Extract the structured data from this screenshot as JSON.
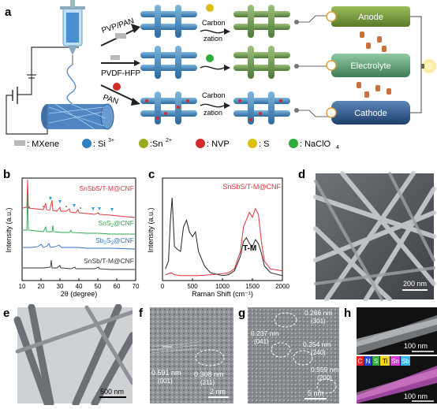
{
  "panels": {
    "a": "a",
    "b": "b",
    "c": "c",
    "d": "d",
    "e": "e",
    "f": "f",
    "g": "g",
    "h": "h"
  },
  "schematic": {
    "routes": [
      "PVP/PAN",
      "PVDF-HFP",
      "PAN"
    ],
    "process_top": [
      "Carbon",
      "zation"
    ],
    "process_bottom": [
      "Carbon",
      "zation"
    ],
    "targets": [
      "Anode",
      "Electrolyte",
      "Cathode"
    ],
    "legend": [
      {
        "text": ": MXene",
        "color": "#b8b8b8"
      },
      {
        "text": ": Si",
        "sup": "3+",
        "color": "#2f7fc1"
      },
      {
        "text": ":Sn",
        "sup": "2+",
        "color": "#9aa820"
      },
      {
        "text": ": NVP",
        "color": "#d42a2a"
      },
      {
        "text": ": S",
        "color": "#d9c012"
      },
      {
        "text": ": NaClO",
        "sub": "4",
        "color": "#2fae3a"
      }
    ]
  },
  "chart_data": [
    {
      "type": "line",
      "panel": "b",
      "xlabel": "2θ (degree)",
      "ylabel": "Intensity (a.u.)",
      "xlim": [
        10,
        70
      ],
      "xticks": [
        10,
        20,
        30,
        40,
        50,
        60,
        70
      ],
      "series": [
        {
          "name": "SnSbS/T-M@CNF",
          "color": "#e0303a"
        },
        {
          "name": "SnS2@CNF",
          "color": "#2ea84a"
        },
        {
          "name": "Sb2S3@CNF",
          "color": "#2f6fc9"
        },
        {
          "name": "SnSb/T-M@CNF",
          "color": "#333333"
        }
      ]
    },
    {
      "type": "line",
      "panel": "c",
      "xlabel": "Raman Shift (cm⁻¹)",
      "ylabel": "Intensity (a.u.)",
      "xlim": [
        0,
        2000
      ],
      "xticks": [
        0,
        500,
        1000,
        1500,
        2000
      ],
      "annotations": [
        "T-M"
      ],
      "series": [
        {
          "name": "SnSbS/T-M@CNF",
          "color": "#e0303a",
          "x": [
            50,
            100,
            150,
            200,
            300,
            400,
            500,
            600,
            800,
            1000,
            1100,
            1200,
            1300,
            1350,
            1450,
            1500,
            1550,
            1600,
            1650,
            1700,
            1800,
            2000
          ],
          "y": [
            0.06,
            0.07,
            0.08,
            0.06,
            0.05,
            0.05,
            0.05,
            0.05,
            0.06,
            0.07,
            0.08,
            0.12,
            0.3,
            0.55,
            0.7,
            0.65,
            0.74,
            0.68,
            0.4,
            0.2,
            0.12,
            0.1
          ]
        },
        {
          "name": "T-M",
          "color": "#222222",
          "x": [
            50,
            100,
            130,
            160,
            200,
            250,
            300,
            350,
            400,
            450,
            500,
            550,
            600,
            700,
            800,
            1000,
            1100,
            1200,
            1300,
            1350,
            1400,
            1450,
            1500,
            1550,
            1600,
            1650,
            1700,
            1800,
            2000
          ],
          "y": [
            0.12,
            0.2,
            0.6,
            0.85,
            0.35,
            0.32,
            0.3,
            0.55,
            0.62,
            0.5,
            0.45,
            0.5,
            0.3,
            0.15,
            0.08,
            0.05,
            0.06,
            0.1,
            0.25,
            0.4,
            0.44,
            0.38,
            0.35,
            0.42,
            0.38,
            0.28,
            0.15,
            0.08,
            0.05
          ]
        }
      ]
    }
  ],
  "b_labels": {
    "s1": "SnSbS/T-M@CNF",
    "s2_main": "SnS",
    "s2_sub": "2",
    "s2_tail": "@CNF",
    "s3_a": "Sb",
    "s3_sub1": "2",
    "s3_b": "S",
    "s3_sub2": "3",
    "s3_tail": "@CNF",
    "s4": "SnSb/T-M@CNF"
  },
  "sem_d": {
    "scale": "200 nm"
  },
  "tem_e": {
    "scale": "500 nm"
  },
  "hrtem_f": {
    "d1": "0.591 nm",
    "h1": "(001)",
    "d2": "0.308 nm",
    "h2": "(211)",
    "scale": "2 nm"
  },
  "hrtem_g": {
    "d1": "0.266 nm",
    "h1": "(301)",
    "d2": "0.237 nm",
    "h2": "(041)",
    "d3": "0.254 nm",
    "h3": "(240)",
    "d4": "0.559 nm",
    "h4": "(200)",
    "scale": "5 nm"
  },
  "map_h": {
    "scale_top": "100 nm",
    "scale_bottom": "100 nm",
    "elements": [
      {
        "sym": "C",
        "color": "#e8232a"
      },
      {
        "sym": "N",
        "color": "#2b49e0"
      },
      {
        "sym": "S",
        "color": "#2fae3a"
      },
      {
        "sym": "Ti",
        "color": "#f2d21a"
      },
      {
        "sym": "Sn",
        "color": "#d83ad8"
      },
      {
        "sym": "Sb",
        "color": "#36b7e8"
      }
    ]
  }
}
